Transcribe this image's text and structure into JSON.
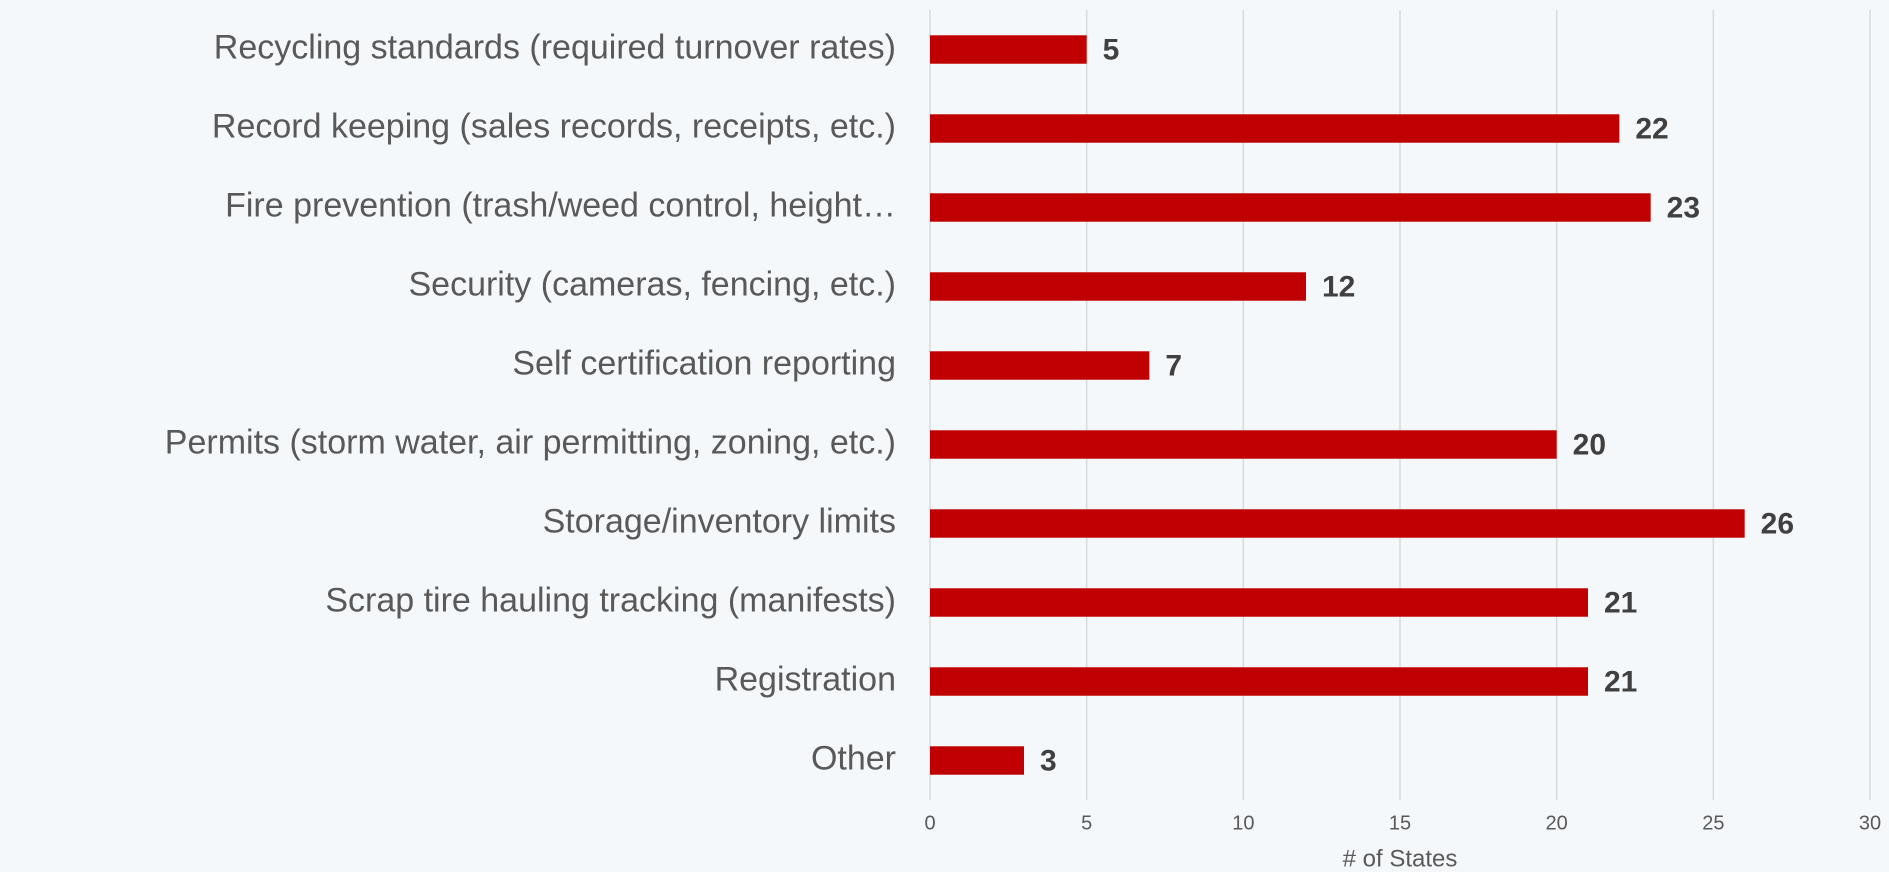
{
  "chart_data": {
    "type": "bar",
    "orientation": "horizontal",
    "categories": [
      "Recycling standards (required turnover rates)",
      "Record keeping (sales records, receipts, etc.)",
      "Fire prevention (trash/weed control, height…",
      "Security  (cameras, fencing, etc.)",
      "Self certification reporting",
      "Permits (storm water, air permitting, zoning, etc.)",
      "Storage/inventory limits",
      "Scrap tire hauling tracking (manifests)",
      "Registration",
      "Other"
    ],
    "values": [
      5,
      22,
      23,
      12,
      7,
      20,
      26,
      21,
      21,
      3
    ],
    "color": "#c00000",
    "xlabel": "# of States",
    "xlim": [
      0,
      30
    ],
    "xticks": [
      0,
      5,
      10,
      15,
      20,
      25,
      30
    ],
    "grid": true
  }
}
